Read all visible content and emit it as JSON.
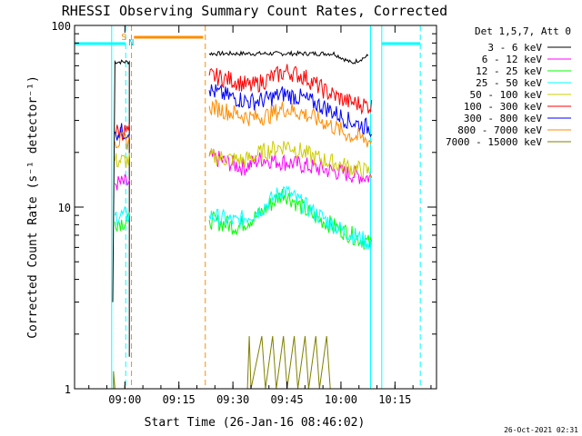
{
  "chart_data": {
    "type": "line",
    "title": "RHESSI Observing Summary Count Rates, Corrected",
    "xlabel": "Start Time (26-Jan-16 08:46:02)",
    "ylabel": "Corrected Count Rate (s⁻¹ detector⁻¹)",
    "yscale": "log",
    "ylim": [
      1,
      100
    ],
    "xlim_minutes_after_start": [
      0,
      100.5
    ],
    "x_ticks": [
      {
        "label": "09:00",
        "minutes": 13.97
      },
      {
        "label": "09:15",
        "minutes": 28.97
      },
      {
        "label": "09:30",
        "minutes": 43.97
      },
      {
        "label": "09:45",
        "minutes": 58.97
      },
      {
        "label": "10:00",
        "minutes": 73.97
      },
      {
        "label": "10:15",
        "minutes": 88.97
      }
    ],
    "y_ticks": [
      {
        "label": "1",
        "value": 1
      },
      {
        "label": "10",
        "value": 10
      },
      {
        "label": "100",
        "value": 100
      }
    ],
    "legend_header": "Det 1,5,7, Att 0",
    "legend_position": "right",
    "timestamp": "26-Oct-2021 02:31",
    "series": [
      {
        "name": "3 - 6 keV",
        "color": "#000000",
        "segments": [
          {
            "points": [
              [
                10.6,
                3.0
              ],
              [
                11.2,
                63
              ],
              [
                15.2,
                63
              ],
              [
                15.2,
                1.5
              ]
            ]
          },
          {
            "points": [
              [
                37.4,
                70
              ],
              [
                45.0,
                70
              ],
              [
                55.0,
                70
              ],
              [
                65.0,
                70
              ],
              [
                72.0,
                70
              ],
              [
                77.0,
                62
              ],
              [
                81.5,
                68
              ]
            ]
          }
        ]
      },
      {
        "name": "6 - 12 keV",
        "color": "#ff00ff",
        "segments": [
          {
            "points": [
              [
                11.2,
                13.5
              ],
              [
                15.2,
                13.5
              ]
            ]
          },
          {
            "points": [
              [
                37.4,
                19
              ],
              [
                47.0,
                16.5
              ],
              [
                52.0,
                18.5
              ],
              [
                60.0,
                17.5
              ],
              [
                70.0,
                16
              ],
              [
                82.5,
                14.5
              ]
            ]
          }
        ]
      },
      {
        "name": "12 - 25 keV",
        "color": "#00ff00",
        "segments": [
          {
            "points": [
              [
                11.2,
                8.3
              ],
              [
                15.2,
                8.3
              ]
            ]
          },
          {
            "points": [
              [
                37.4,
                8.5
              ],
              [
                45.0,
                7.8
              ],
              [
                51.0,
                9.0
              ],
              [
                58.0,
                12.0
              ],
              [
                66.0,
                9.0
              ],
              [
                74.0,
                7.5
              ],
              [
                82.5,
                6.2
              ]
            ]
          }
        ]
      },
      {
        "name": "25 - 50 keV",
        "color": "#00ffff",
        "segments": [
          {
            "points": [
              [
                11.2,
                9.0
              ],
              [
                15.2,
                9.0
              ]
            ]
          },
          {
            "points": [
              [
                37.4,
                9.0
              ],
              [
                45.0,
                8.3
              ],
              [
                51.0,
                9.5
              ],
              [
                58.0,
                12.5
              ],
              [
                66.0,
                9.5
              ],
              [
                74.0,
                7.5
              ],
              [
                82.5,
                6.3
              ]
            ]
          }
        ]
      },
      {
        "name": "50 - 100 keV",
        "color": "#cccc00",
        "segments": [
          {
            "points": [
              [
                11.2,
                18
              ],
              [
                15.2,
                18
              ]
            ]
          },
          {
            "points": [
              [
                37.4,
                19
              ],
              [
                47.0,
                18
              ],
              [
                52.0,
                20
              ],
              [
                59.0,
                22
              ],
              [
                66.0,
                19
              ],
              [
                74.0,
                17
              ],
              [
                82.5,
                15.5
              ]
            ]
          }
        ]
      },
      {
        "name": "100 - 300 keV",
        "color": "#ff0000",
        "segments": [
          {
            "points": [
              [
                11.2,
                26
              ],
              [
                15.2,
                26
              ]
            ]
          },
          {
            "points": [
              [
                37.4,
                53
              ],
              [
                44.0,
                50
              ],
              [
                49.0,
                46
              ],
              [
                54.0,
                51
              ],
              [
                59.0,
                56
              ],
              [
                64.0,
                52
              ],
              [
                70.0,
                43
              ],
              [
                76.0,
                38
              ],
              [
                82.5,
                36
              ]
            ]
          }
        ]
      },
      {
        "name": "300 - 800 keV",
        "color": "#0000ff",
        "segments": [
          {
            "points": [
              [
                11.2,
                26
              ],
              [
                15.2,
                26
              ]
            ]
          },
          {
            "points": [
              [
                37.4,
                44
              ],
              [
                44.0,
                40
              ],
              [
                49.0,
                38
              ],
              [
                53.0,
                39
              ],
              [
                58.0,
                42
              ],
              [
                63.0,
                40
              ],
              [
                70.0,
                35
              ],
              [
                76.0,
                30
              ],
              [
                82.5,
                27
              ]
            ]
          }
        ]
      },
      {
        "name": "800 - 7000 keV",
        "color": "#ff8c00",
        "segments": [
          {
            "points": [
              [
                11.2,
                23
              ],
              [
                15.2,
                23
              ]
            ]
          },
          {
            "points": [
              [
                37.4,
                36
              ],
              [
                44.0,
                33
              ],
              [
                49.0,
                31
              ],
              [
                54.0,
                32
              ],
              [
                58.0,
                35
              ],
              [
                63.0,
                33
              ],
              [
                70.0,
                29
              ],
              [
                76.0,
                25
              ],
              [
                82.5,
                23
              ]
            ]
          }
        ]
      },
      {
        "name": "7000 - 15000 keV",
        "color": "#808000",
        "segments": [
          {
            "points": [
              [
                10.8,
                1.0
              ],
              [
                10.8,
                1.25
              ],
              [
                11.2,
                1.0
              ]
            ]
          },
          {
            "points": [
              [
                48.0,
                1.0
              ],
              [
                48.5,
                1.95
              ],
              [
                49.0,
                1.0
              ],
              [
                52.0,
                1.95
              ],
              [
                53.0,
                1.0
              ],
              [
                55.0,
                1.95
              ],
              [
                56.0,
                1.0
              ],
              [
                58.0,
                1.95
              ],
              [
                59.0,
                1.0
              ],
              [
                61.0,
                1.95
              ],
              [
                62.0,
                1.0
              ],
              [
                64.0,
                1.95
              ],
              [
                65.0,
                1.0
              ],
              [
                67.0,
                1.95
              ],
              [
                68.0,
                1.0
              ],
              [
                70.0,
                1.95
              ],
              [
                71.0,
                1.0
              ]
            ]
          }
        ]
      }
    ],
    "flags": {
      "saa_label": "S",
      "night_label": "N",
      "attenuator_bar": [
        16.5,
        35.7
      ],
      "cyan_solid_lines": [
        10.3,
        82.2,
        85.3
      ],
      "cyan_dashed_lines": [
        14.2,
        96.0
      ],
      "orange_dashed_lines": [
        15.8,
        36.3
      ],
      "top_cyan_segments": [
        [
          0,
          14.2
        ],
        [
          85.3,
          96.0
        ]
      ]
    }
  }
}
